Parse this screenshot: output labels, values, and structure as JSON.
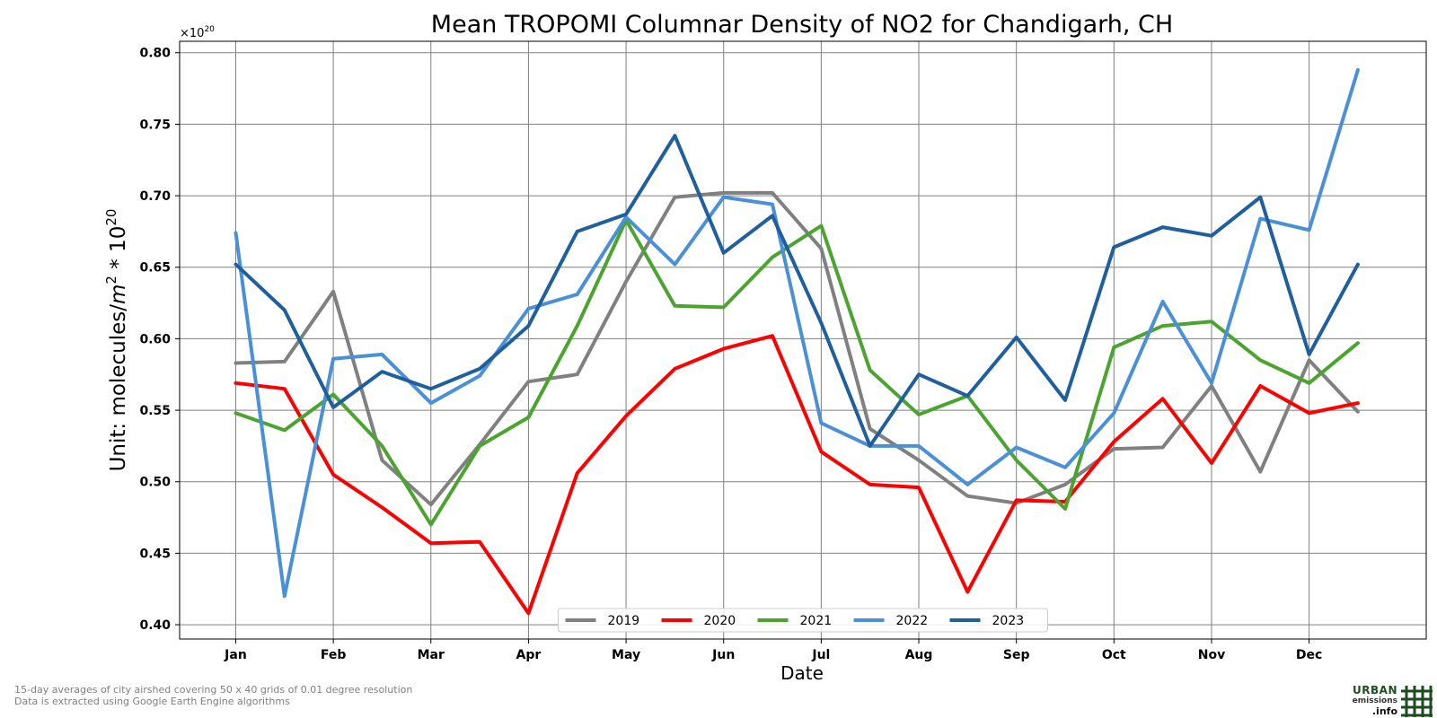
{
  "chart_data": {
    "type": "line",
    "title": "Mean TROPOMI Columnar Density of NO2 for Chandigarh, CH",
    "xlabel": "Date",
    "ylabel_base": "Unit: molecules/",
    "ylabel_m": "m",
    "ylabel_m_exp": "2",
    "ylabel_mid": " * 10",
    "ylabel_exp": "20",
    "offset_text_base": "×10",
    "offset_text_exp": "20",
    "ylim": [
      0.39,
      0.808
    ],
    "yticks": [
      0.4,
      0.45,
      0.5,
      0.55,
      0.6,
      0.65,
      0.7,
      0.75,
      0.8
    ],
    "ytick_labels": [
      "0.40",
      "0.45",
      "0.50",
      "0.55",
      "0.60",
      "0.65",
      "0.70",
      "0.75",
      "0.80"
    ],
    "xticks": [
      0,
      2,
      4,
      6,
      8,
      10,
      12,
      14,
      16,
      18,
      20,
      22
    ],
    "xtick_labels": [
      "Jan",
      "Feb",
      "Mar",
      "Apr",
      "May",
      "Jun",
      "Jul",
      "Aug",
      "Sep",
      "Oct",
      "Nov",
      "Dec"
    ],
    "xlim": [
      -1.15,
      24.4
    ],
    "x": [
      0,
      1,
      2,
      3,
      4,
      5,
      6,
      7,
      8,
      9,
      10,
      11,
      12,
      13,
      14,
      15,
      16,
      17,
      18,
      19,
      20,
      21,
      22,
      23
    ],
    "grid": true,
    "legend_position": "bottom-center",
    "series": [
      {
        "name": "2019",
        "color": "#808080",
        "values": [
          0.583,
          0.584,
          0.633,
          0.515,
          0.484,
          0.526,
          0.57,
          0.575,
          0.64,
          0.699,
          0.702,
          0.702,
          0.663,
          0.537,
          0.515,
          0.49,
          0.485,
          0.498,
          0.523,
          0.524,
          0.567,
          0.507,
          0.585,
          0.549
        ]
      },
      {
        "name": "2020",
        "color": "#ff0000",
        "values": [
          0.569,
          0.565,
          0.505,
          0.482,
          0.457,
          0.458,
          0.408,
          0.506,
          0.546,
          0.579,
          0.593,
          0.602,
          0.521,
          0.498,
          0.496,
          0.423,
          0.487,
          0.486,
          0.528,
          0.558,
          0.513,
          0.567,
          0.548,
          0.555
        ]
      },
      {
        "name": "2021",
        "color": "#4aa42e",
        "values": [
          0.548,
          0.536,
          0.561,
          0.525,
          0.47,
          0.525,
          0.545,
          0.609,
          0.683,
          0.623,
          0.622,
          0.657,
          0.679,
          0.578,
          0.547,
          0.56,
          0.515,
          0.481,
          0.594,
          0.609,
          0.612,
          0.585,
          0.569,
          0.597
        ]
      },
      {
        "name": "2022",
        "color": "#4a90d9",
        "values": [
          0.674,
          0.42,
          0.586,
          0.589,
          0.555,
          0.574,
          0.621,
          0.631,
          0.685,
          0.652,
          0.699,
          0.694,
          0.541,
          0.525,
          0.525,
          0.498,
          0.524,
          0.51,
          0.548,
          0.626,
          0.569,
          0.684,
          0.676,
          0.788
        ]
      },
      {
        "name": "2023",
        "color": "#1f5f9e",
        "values": [
          0.652,
          0.62,
          0.552,
          0.577,
          0.565,
          0.579,
          0.609,
          0.675,
          0.687,
          0.742,
          0.66,
          0.686,
          0.611,
          0.525,
          0.575,
          0.56,
          0.601,
          0.557,
          0.664,
          0.678,
          0.672,
          0.699,
          0.589,
          0.652
        ]
      }
    ]
  },
  "footnote": {
    "line1": "15-day averages of city airshed covering 50 x 40 grids of 0.01 degree resolution",
    "line2": "Data is extracted using Google Earth Engine algorithms"
  },
  "logo": {
    "word1": "URBAN",
    "word2": "emissions",
    "word3": ".info",
    "color": "#1d4d1f"
  }
}
